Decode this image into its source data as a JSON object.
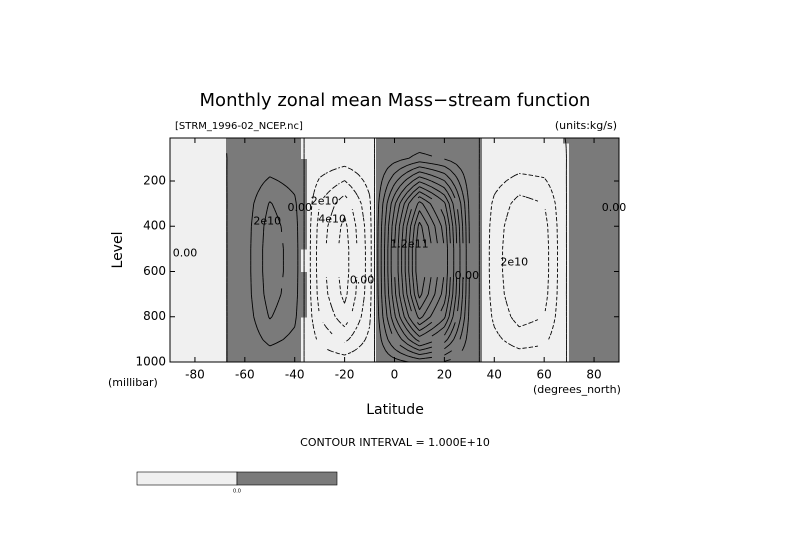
{
  "chart_data": {
    "type": "contour",
    "title": "Monthly zonal mean Mass−stream function",
    "subtitle_left": "[STRM_1996-02_NCEP.nc]",
    "subtitle_right": "(units:kg/s)",
    "x_label": "Latitude",
    "x_unit": "(degrees_north)",
    "y_label": "Level",
    "y_unit": "(millibar)",
    "xlim": [
      -90,
      90
    ],
    "xticks": [
      -80,
      -60,
      -40,
      -20,
      0,
      20,
      40,
      60,
      80
    ],
    "ylim": [
      1000,
      10
    ],
    "yticks": [
      200,
      400,
      600,
      800,
      1000
    ],
    "x": [
      -90,
      -80,
      -70,
      -60,
      -50,
      -40,
      -30,
      -20,
      -10,
      0,
      10,
      20,
      30,
      40,
      50,
      60,
      70,
      80,
      90
    ],
    "y": [
      1000,
      900,
      800,
      700,
      600,
      500,
      400,
      300,
      200,
      100,
      10
    ],
    "z": [
      [
        -300000000.0,
        -300000000.0,
        -200000000.0,
        500000000.0,
        2600000000.0,
        1500000000.0,
        -2500000000.0,
        -4500000000.0,
        -1500000000.0,
        6000000000.0,
        13000000000.0,
        9000000000.0,
        1000000000.0,
        -1500000000.0,
        -3000000000.0,
        -2500000000.0,
        300000000.0,
        500000000.0,
        300000000.0
      ],
      [
        -1500000000.0,
        -1500000000.0,
        -1000000000.0,
        2500000000.0,
        13000000000.0,
        7500000000.0,
        -12500000000.0,
        -22500000000.0,
        -7500000000.0,
        30000000000.0,
        65000000000.0,
        45000000000.0,
        5000000000.0,
        -7500000000.0,
        -15000000000.0,
        -12500000000.0,
        1500000000.0,
        2500000000.0,
        1500000000.0
      ],
      [
        -2400000000.0,
        -2400000000.0,
        -1600000000.0,
        4000000000.0,
        20800000000.0,
        12000000000.0,
        -20000000000.0,
        -36000000000.0,
        -12000000000.0,
        48000000000.0,
        104000000000.0,
        72000000000.0,
        8000000000.0,
        -12000000000.0,
        -24000000000.0,
        -20000000000.0,
        2400000000.0,
        4000000000.0,
        2400000000.0
      ],
      [
        -2900000000.0,
        -2900000000.0,
        -1900000000.0,
        4800000000.0,
        24700000000.0,
        14300000000.0,
        -23800000000.0,
        -42800000000.0,
        -14300000000.0,
        57000000000.0,
        123500000000.0,
        85500000000.0,
        9500000000.0,
        -14300000000.0,
        -28500000000.0,
        -23800000000.0,
        2900000000.0,
        4800000000.0,
        2900000000.0
      ],
      [
        -3000000000.0,
        -3000000000.0,
        -2000000000.0,
        5000000000.0,
        26000000000.0,
        15000000000.0,
        -25000000000.0,
        -45000000000.0,
        -15000000000.0,
        60000000000.0,
        130000000000.0,
        90000000000.0,
        10000000000.0,
        -15000000000.0,
        -30000000000.0,
        -25000000000.0,
        3000000000.0,
        5000000000.0,
        3000000000.0
      ],
      [
        -3000000000.0,
        -3000000000.0,
        -2000000000.0,
        5000000000.0,
        26000000000.0,
        15000000000.0,
        -25000000000.0,
        -45000000000.0,
        -15000000000.0,
        60000000000.0,
        130000000000.0,
        90000000000.0,
        10000000000.0,
        -15000000000.0,
        -30000000000.0,
        -25000000000.0,
        3000000000.0,
        5000000000.0,
        3000000000.0
      ],
      [
        -2900000000.0,
        -2900000000.0,
        -1900000000.0,
        4800000000.0,
        24700000000.0,
        14300000000.0,
        -23800000000.0,
        -42800000000.0,
        -14300000000.0,
        57000000000.0,
        123500000000.0,
        85500000000.0,
        9500000000.0,
        -14300000000.0,
        -28500000000.0,
        -23800000000.0,
        2900000000.0,
        4800000000.0,
        2900000000.0
      ],
      [
        -2400000000.0,
        -2400000000.0,
        -1600000000.0,
        4000000000.0,
        20800000000.0,
        12000000000.0,
        -20000000000.0,
        -36000000000.0,
        -12000000000.0,
        48000000000.0,
        104000000000.0,
        72000000000.0,
        8000000000.0,
        -12000000000.0,
        -24000000000.0,
        -20000000000.0,
        2400000000.0,
        4000000000.0,
        2400000000.0
      ],
      [
        -1400000000.0,
        -1400000000.0,
        -900000000.0,
        2300000000.0,
        11700000000.0,
        6800000000.0,
        -11300000000.0,
        -20300000000.0,
        -6800000000.0,
        27000000000.0,
        58500000000.0,
        40500000000.0,
        4500000000.0,
        -6800000000.0,
        -13500000000.0,
        -11300000000.0,
        1400000000.0,
        2300000000.0,
        1400000000.0
      ],
      [
        -300000000.0,
        -300000000.0,
        -200000000.0,
        500000000.0,
        2600000000.0,
        1500000000.0,
        -2500000000.0,
        -4500000000.0,
        -1500000000.0,
        6000000000.0,
        13000000000.0,
        9000000000.0,
        1000000000.0,
        -1500000000.0,
        -3000000000.0,
        -2500000000.0,
        300000000.0,
        500000000.0,
        300000000.0
      ],
      [
        -100000000.0,
        -100000000.0,
        0,
        100000000.0,
        500000000.0,
        300000000.0,
        -500000000.0,
        -900000000.0,
        -300000000.0,
        1200000000.0,
        2600000000.0,
        1800000000.0,
        200000000.0,
        -300000000.0,
        -600000000.0,
        -500000000.0,
        100000000.0,
        100000000.0,
        100000000.0
      ]
    ],
    "contour_interval": {
      "value": 10000000000.0,
      "label": "CONTOUR INTERVAL = 1.000E+10"
    },
    "colors": {
      "negative": "#f0f0f0",
      "positive": "#7a7a7a",
      "line": "#000000"
    },
    "annotations": [
      {
        "text": "0.00",
        "x": -84,
        "y": 520
      },
      {
        "text": "2e10",
        "x": -51,
        "y": 380
      },
      {
        "text": "0.00",
        "x": -38,
        "y": 320
      },
      {
        "text": "2e10",
        "x": -28,
        "y": 290
      },
      {
        "text": "4e10",
        "x": -25,
        "y": 370
      },
      {
        "text": "0.00",
        "x": -13,
        "y": 640
      },
      {
        "text": "1.2e11",
        "x": 6,
        "y": 480
      },
      {
        "text": "0.00",
        "x": 29,
        "y": 620
      },
      {
        "text": "2e10",
        "x": 48,
        "y": 560
      },
      {
        "text": "0.00",
        "x": 88,
        "y": 320
      }
    ],
    "colorbar": {
      "label": "0.0"
    }
  }
}
